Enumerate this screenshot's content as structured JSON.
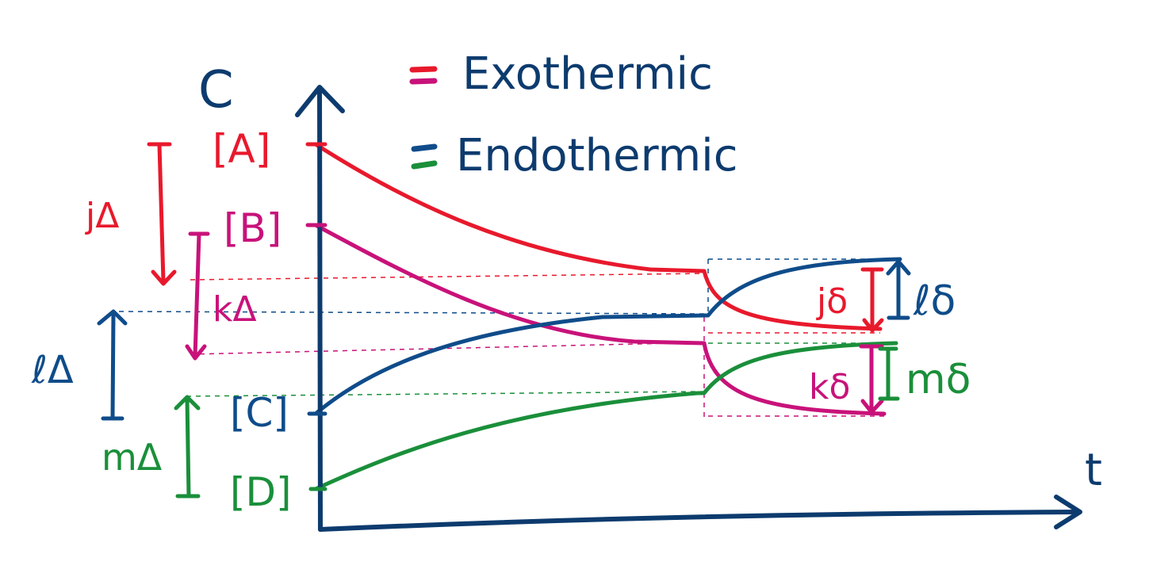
{
  "colors": {
    "axis": "#0d3b6e",
    "red": "#e8192c",
    "magenta": "#c8127a",
    "blue": "#0f4c8a",
    "green": "#1a8f3a"
  },
  "axes": {
    "y_label": "C",
    "x_label": "t"
  },
  "species": {
    "A": "[A]",
    "B": "[B]",
    "C": "[C]",
    "D": "[D]"
  },
  "legend": {
    "exothermic": "Exothermic",
    "endothermic": "Endothermic"
  },
  "changes_before": {
    "j": "jΔ",
    "k": "kΔ",
    "l": "ℓΔ",
    "m": "mΔ"
  },
  "changes_after": {
    "j": "jδ",
    "l": "ℓδ",
    "k": "kδ",
    "m": "mδ"
  }
}
